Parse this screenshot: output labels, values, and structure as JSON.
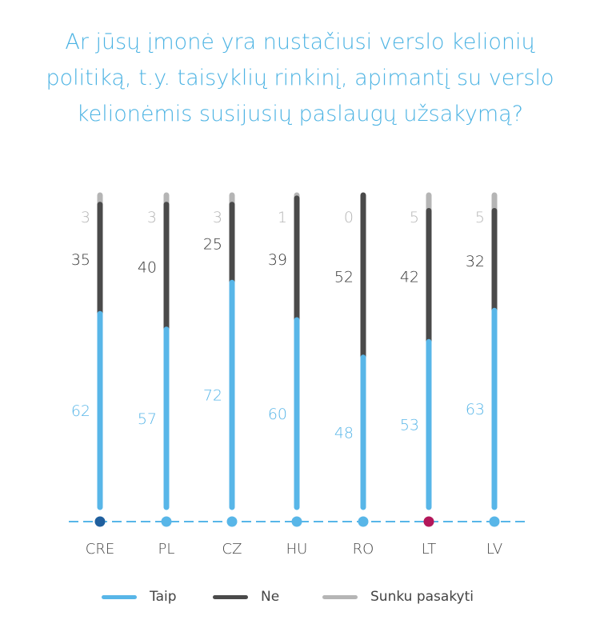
{
  "title_lines": [
    "Ar jūsų įmonė yra nustačiusi verslo kelionių",
    "politiką, t.y. taisyklių rinkinį, apimantį su verslo",
    "kelionėmis susijusių paslaugų užsakymą?"
  ],
  "colors": {
    "taip": "#58b6e8",
    "ne": "#4a4a4a",
    "sunku": "#b5b5b5",
    "axis": "#58b6e8",
    "dot_default": "#58b6e8",
    "dot_cre": "#1f5f9e",
    "dot_lt": "#b3175a",
    "label_taip": "#58b6e8",
    "label_ne": "#333333",
    "label_sunku": "#b5b5b5"
  },
  "legend": [
    {
      "label": "Taip",
      "color": "#58b6e8"
    },
    {
      "label": "Ne",
      "color": "#4a4a4a"
    },
    {
      "label": "Sunku pasakyti",
      "color": "#b5b5b5"
    }
  ],
  "chart_data": {
    "type": "bar",
    "stacked": true,
    "orientation": "vertical",
    "title": "Ar jūsų įmonė yra nustačiusi verslo kelionių politiką, t.y. taisyklių rinkinį, apimantį su verslo kelionėmis susijusių paslaugų užsakymą?",
    "categories": [
      "CRE",
      "PL",
      "CZ",
      "HU",
      "RO",
      "LT",
      "LV"
    ],
    "series": [
      {
        "name": "Taip",
        "values": [
          62,
          57,
          72,
          60,
          48,
          53,
          63
        ]
      },
      {
        "name": "Ne",
        "values": [
          35,
          40,
          25,
          39,
          52,
          42,
          32
        ]
      },
      {
        "name": "Sunku pasakyti",
        "values": [
          3,
          3,
          3,
          1,
          0,
          5,
          5
        ]
      }
    ],
    "ylim": [
      0,
      100
    ],
    "legend_position": "bottom",
    "grid": false
  }
}
